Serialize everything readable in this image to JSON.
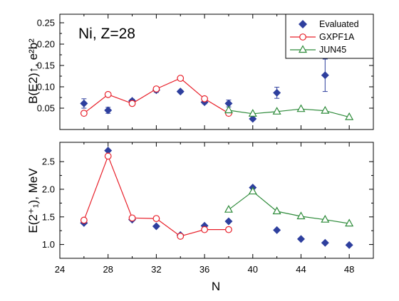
{
  "chart_data": [
    {
      "type": "scatter",
      "ylabel": "B(E2)↑, e²b²",
      "xlabel": "",
      "xlim": [
        24,
        50
      ],
      "ylim": [
        0,
        0.27
      ],
      "xticks": [
        24,
        28,
        32,
        36,
        40,
        44,
        48
      ],
      "yticks": [
        0.05,
        0.1,
        0.15,
        0.2,
        0.25
      ],
      "ytick_labels": [
        "0.05",
        "0.10",
        "0.15",
        "0.20",
        "0.25"
      ],
      "annotation": "Ni, Z=28",
      "legend": {
        "placement": "top-right",
        "entries": [
          "Evaluated",
          "GXPF1A",
          "JUN45"
        ]
      },
      "series": [
        {
          "name": "Evaluated",
          "style": "diamond",
          "color": "#2e3f9e",
          "x": [
            26,
            28,
            30,
            32,
            34,
            36,
            38,
            40,
            42,
            46
          ],
          "y": [
            0.061,
            0.045,
            0.067,
            0.092,
            0.089,
            0.064,
            0.061,
            0.025,
            0.086,
            0.127
          ],
          "err": [
            0.011,
            0.007,
            0.004,
            0.005,
            0.003,
            0.004,
            0.008,
            0.003,
            0.013,
            0.038
          ]
        },
        {
          "name": "GXPF1A",
          "style": "line-circle",
          "color": "#e8202a",
          "x": [
            26,
            28,
            30,
            32,
            34,
            36,
            38
          ],
          "y": [
            0.038,
            0.082,
            0.061,
            0.095,
            0.12,
            0.072,
            0.038
          ]
        },
        {
          "name": "JUN45",
          "style": "line-triangle",
          "color": "#2e8b3a",
          "x": [
            38,
            40,
            42,
            44,
            46,
            48
          ],
          "y": [
            0.045,
            0.037,
            0.042,
            0.048,
            0.044,
            0.029
          ]
        }
      ]
    },
    {
      "type": "scatter",
      "ylabel": "E(2⁺₁), MeV",
      "xlabel": "N",
      "xlim": [
        24,
        50
      ],
      "ylim": [
        0.75,
        2.85
      ],
      "xticks": [
        24,
        28,
        32,
        36,
        40,
        44,
        48
      ],
      "yticks": [
        1.0,
        1.5,
        2.0,
        2.5
      ],
      "ytick_labels": [
        "1.0",
        "1.5",
        "2.0",
        "2.5"
      ],
      "series": [
        {
          "name": "Evaluated",
          "style": "diamond",
          "color": "#2e3f9e",
          "x": [
            26,
            28,
            30,
            32,
            34,
            36,
            38,
            40,
            42,
            44,
            46,
            48
          ],
          "y": [
            1.39,
            2.7,
            1.45,
            1.33,
            1.17,
            1.34,
            1.42,
            2.03,
            1.26,
            1.1,
            1.03,
            0.99
          ]
        },
        {
          "name": "GXPF1A",
          "style": "line-circle",
          "color": "#e8202a",
          "x": [
            26,
            28,
            30,
            32,
            34,
            36,
            38
          ],
          "y": [
            1.44,
            2.6,
            1.48,
            1.47,
            1.15,
            1.27,
            1.27
          ]
        },
        {
          "name": "JUN45",
          "style": "line-triangle",
          "color": "#2e8b3a",
          "x": [
            38,
            40,
            42,
            44,
            46,
            48
          ],
          "y": [
            1.63,
            1.96,
            1.6,
            1.51,
            1.45,
            1.38
          ]
        }
      ]
    }
  ]
}
